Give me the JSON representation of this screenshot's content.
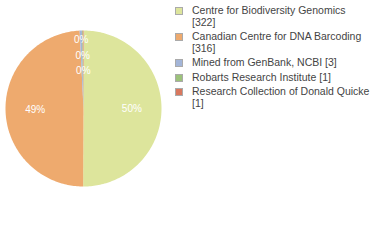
{
  "chart_data": {
    "type": "pie",
    "categories": [
      "Centre for Biodiversity Genomics [322]",
      "Canadian Centre for DNA Barcoding [316]",
      "Mined from GenBank, NCBI [3]",
      "Robarts Research Institute [1]",
      "Research Collection of Donald Quicke [1]"
    ],
    "values": [
      50.08,
      49.14,
      0.47,
      0.16,
      0.16
    ],
    "value_labels": [
      "50%",
      "49%",
      "0%",
      "0%",
      "0%"
    ],
    "colors": [
      "#dde59c",
      "#eeaa6e",
      "#a3b5d8",
      "#9cc27a",
      "#d9785e"
    ],
    "data_labels": true,
    "legend": "right"
  }
}
